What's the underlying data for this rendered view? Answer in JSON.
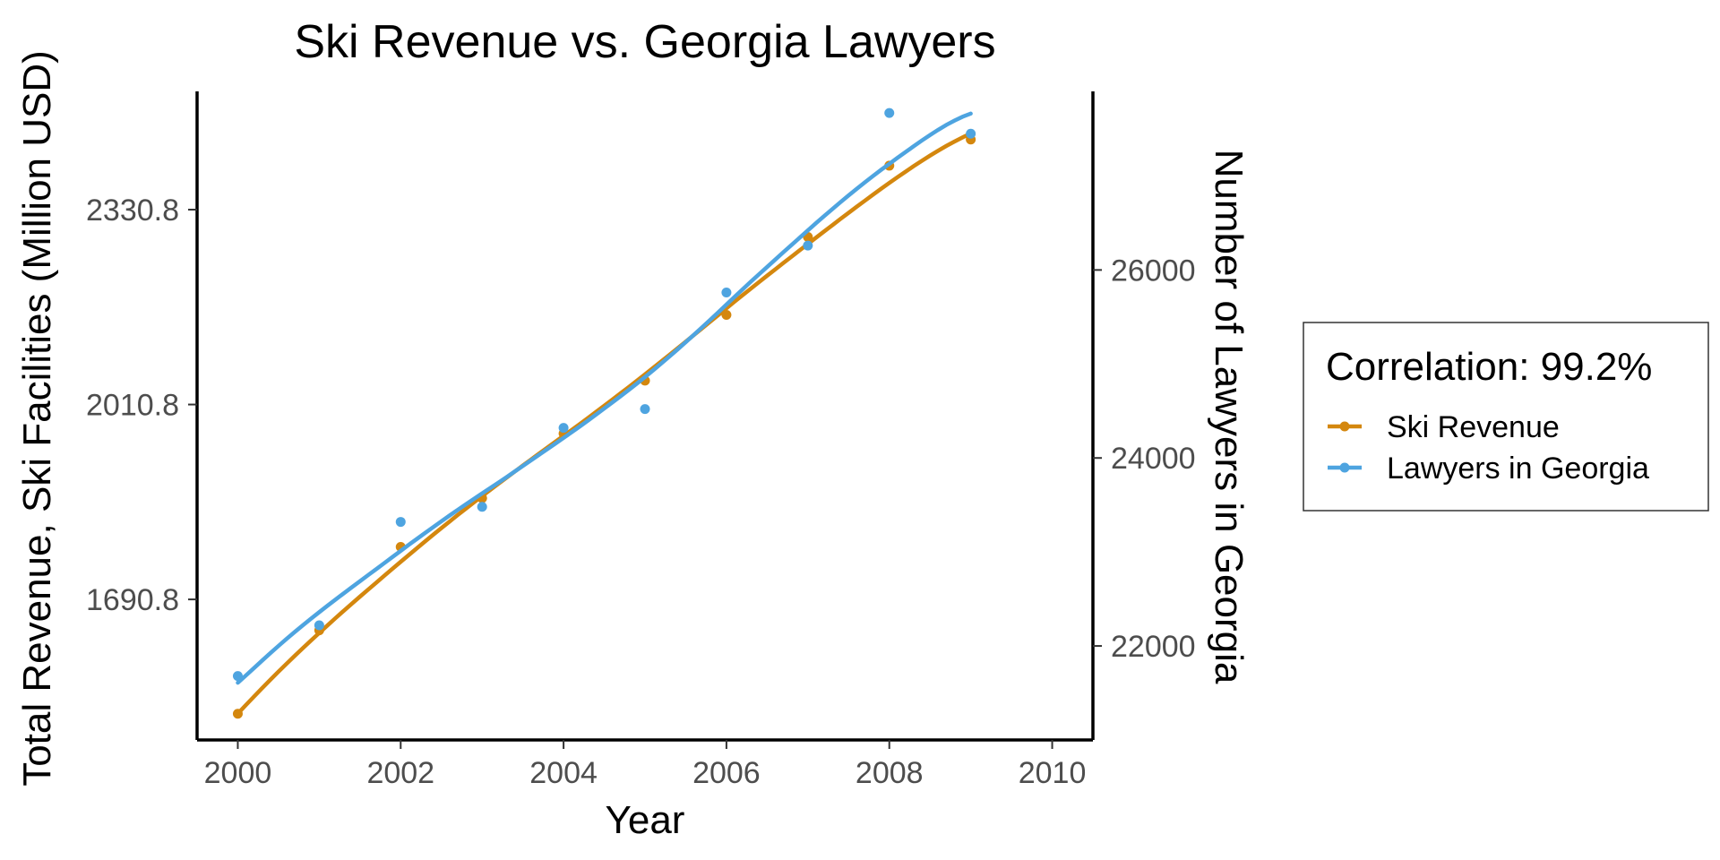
{
  "chart_data": {
    "type": "line",
    "title": "Ski Revenue vs. Georgia Lawyers",
    "xlabel": "Year",
    "ylabel_left": "Total Revenue, Ski Facilities (Million USD)",
    "ylabel_right": "Number of Lawyers in Georgia",
    "x_ticks": [
      "2000",
      "2002",
      "2004",
      "2006",
      "2008",
      "2010"
    ],
    "y_left_ticks": [
      "1690.8",
      "2010.8",
      "2330.8"
    ],
    "y_right_ticks": [
      "22000",
      "24000",
      "26000"
    ],
    "xlim": [
      1999.5,
      2010.5
    ],
    "ylim_left": [
      1460,
      2525
    ],
    "ylim_right": [
      21000,
      27900
    ],
    "grid": false,
    "legend_position": "right",
    "legend_title": "Correlation: 99.2%",
    "series": [
      {
        "name": "Ski Revenue",
        "axis": "left",
        "color": "#d4870e",
        "x": [
          2000,
          2001,
          2002,
          2003,
          2004,
          2005,
          2006,
          2007,
          2008,
          2009
        ],
        "values": [
          1503,
          1640,
          1777,
          1857,
          1963,
          2050,
          2158,
          2286,
          2403,
          2446
        ]
      },
      {
        "name": "Lawyers in Georgia",
        "axis": "right",
        "color": "#4ea4e0",
        "x": [
          2000,
          2001,
          2002,
          2003,
          2004,
          2005,
          2006,
          2007,
          2008,
          2009
        ],
        "values": [
          21680,
          22220,
          23320,
          23480,
          24320,
          24520,
          25760,
          26260,
          27670,
          27450
        ]
      }
    ]
  }
}
